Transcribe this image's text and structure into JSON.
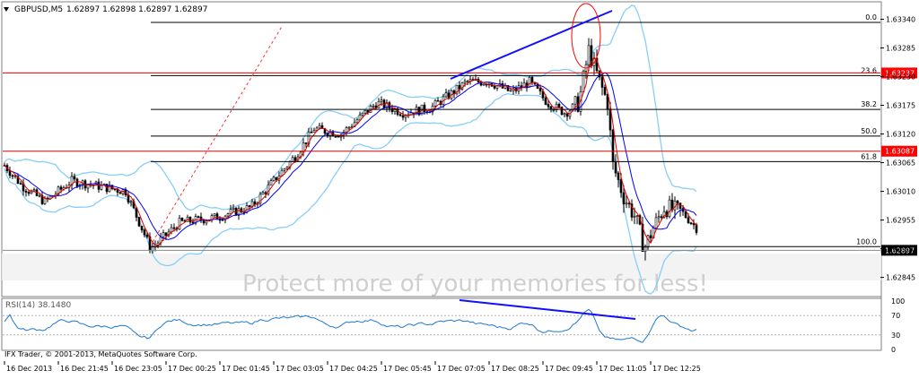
{
  "header": {
    "symbol": "GBPUSD,M5",
    "ohlc": "1.62897 1.62898 1.62897 1.62897"
  },
  "copyright": "IFX Trader, © 2001-2013, MetaQuotes Software Corp.",
  "watermark": "Protect more of your memories for less!",
  "colors": {
    "background": "#ffffff",
    "grid": "#c8c8c8",
    "candle_bull": "#ffffff",
    "candle_bear": "#000000",
    "bollinger": "#87cefa",
    "ma_fast": "#e00000",
    "ma_slow": "#0000ff",
    "rsi_line": "#1e78d2",
    "trendline": "#1010ff",
    "ellipse": "#ff0000",
    "fib_line": "#000000",
    "price_label_bg": "#ff0000",
    "current_price_label": "#000000"
  },
  "chart_data": [
    {
      "type": "candlestick",
      "title": "GBPUSD,M5",
      "ylim": [
        1.6281,
        1.6337
      ],
      "y_ticks": [
        "1.63340",
        "1.63285",
        "1.63230",
        "1.63175",
        "1.63120",
        "1.63065",
        "1.63010",
        "1.62955",
        "1.62900",
        "1.62845"
      ],
      "y_tick_values": [
        1.6334,
        1.63285,
        1.6323,
        1.63175,
        1.6312,
        1.63065,
        1.6301,
        1.62955,
        1.629,
        1.62845
      ],
      "x_ticks": [
        "16 Dec 2013",
        "16 Dec 21:45",
        "16 Dec 23:05",
        "17 Dec 00:25",
        "17 Dec 01:45",
        "17 Dec 03:05",
        "17 Dec 04:25",
        "17 Dec 05:45",
        "17 Dec 07:05",
        "17 Dec 08:25",
        "17 Dec 09:45",
        "17 Dec 11:05",
        "17 Dec 12:25"
      ],
      "fibonacci": [
        {
          "label": "0.0",
          "price": 1.63334
        },
        {
          "label": "23.6",
          "price": 1.63232
        },
        {
          "label": "38.2",
          "price": 1.63167
        },
        {
          "label": "50.0",
          "price": 1.63116
        },
        {
          "label": "61.8",
          "price": 1.63067
        },
        {
          "label": "100.0",
          "price": 1.62904
        }
      ],
      "horizontal_levels": [
        {
          "label": "1.63237",
          "price": 1.63237
        },
        {
          "label": "1.63087",
          "price": 1.63087
        }
      ],
      "current_price": {
        "label": "1.62897",
        "price": 1.62897
      },
      "indicators": [
        "Bollinger Bands",
        "Moving Average (fast)",
        "Moving Average (slow)"
      ],
      "grid": false
    },
    {
      "type": "line",
      "title": "RSI(14) 38.1480",
      "ylim": [
        0,
        100
      ],
      "y_ticks": [
        "100",
        "70",
        "30",
        "0"
      ],
      "y_tick_values": [
        100,
        70,
        30,
        0
      ],
      "last_value": 38.148
    }
  ]
}
